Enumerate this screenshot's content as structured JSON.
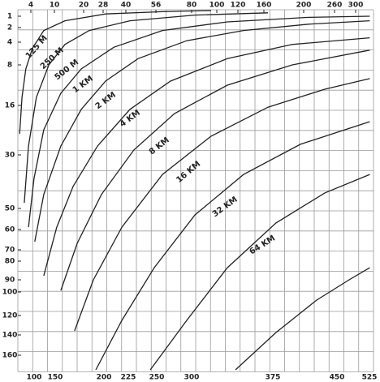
{
  "chart_data": {
    "type": "line",
    "xlim": [
      0,
      330
    ],
    "xticks": [
      4,
      10,
      20,
      28,
      40,
      56,
      80,
      100,
      120,
      160,
      200,
      260,
      300
    ],
    "x2ticks": [
      100,
      150,
      200,
      225,
      250,
      300,
      375,
      450,
      525
    ],
    "ylim": [
      0,
      175
    ],
    "yticks": [
      1,
      2,
      4,
      8,
      16,
      30,
      50,
      60,
      70,
      80,
      90,
      100,
      120,
      140,
      160
    ],
    "color": "#222222",
    "series": [
      {
        "name": "125 M",
        "x": [
          1.1,
          1.7,
          2.7,
          4.4,
          7.3,
          13.6,
          29.3,
          60.4,
          95.5
        ],
        "values": [
          24,
          14.4,
          8.8,
          5.1,
          2.4,
          1.4,
          0.8,
          0.6,
          0.5
        ]
      },
      {
        "name": "250 M",
        "x": [
          2.3,
          3.4,
          5.4,
          8.6,
          13.6,
          22.3,
          42.2,
          82.6,
          164.1
        ],
        "values": [
          47.9,
          27.5,
          14.4,
          8,
          4.4,
          2.4,
          1.4,
          0.9,
          0.7
        ]
      },
      {
        "name": "500 M",
        "x": [
          3.4,
          4.8,
          7.3,
          12.2,
          19.2,
          33.6,
          60.4,
          110,
          209.5,
          326.1
        ],
        "values": [
          58.9,
          38.8,
          22.9,
          13.6,
          8.8,
          4.9,
          2.4,
          1.5,
          1.1,
          1
        ]
      },
      {
        "name": "1 KM",
        "x": [
          5,
          7.3,
          12.2,
          19.2,
          29.3,
          46.5,
          76.7,
          128.8,
          209.5,
          326.1
        ],
        "values": [
          66,
          44.8,
          27.5,
          17.1,
          11.2,
          6.9,
          3.8,
          2.4,
          1.7,
          1.4
        ]
      },
      {
        "name": "2 KM",
        "x": [
          7.3,
          10.8,
          16.4,
          25.7,
          42.2,
          65.8,
          110,
          188.6,
          326.1
        ],
        "values": [
          87.8,
          58.9,
          41.8,
          27.5,
          17.1,
          11.2,
          6.9,
          4.4,
          3.4
        ]
      },
      {
        "name": "4 KM",
        "x": [
          12.2,
          17.8,
          27.3,
          44.3,
          68.5,
          110,
          188.6,
          326.1
        ],
        "values": [
          98.7,
          66.8,
          44.8,
          28.6,
          18.3,
          12,
          8,
          5.4
        ]
      },
      {
        "name": "8 KM",
        "x": [
          16.9,
          24,
          37.9,
          60.4,
          95.5,
          164.1,
          241.1,
          326.1
        ],
        "values": [
          135.8,
          90,
          58.9,
          37.3,
          24.7,
          16.5,
          12.8,
          10.7
        ]
      },
      {
        "name": "16 KM",
        "x": [
          25,
          37.9,
          55.1,
          82.6,
          128.8,
          196.7,
          326.1
        ],
        "values": [
          175,
          125,
          83.5,
          53.1,
          37.3,
          27,
          20.6
        ]
      },
      {
        "name": "32 KM",
        "x": [
          53,
          76.7,
          110,
          172.2,
          241.1,
          326.1
        ],
        "values": [
          175,
          125,
          83.5,
          56.9,
          44.2,
          37.3
        ]
      },
      {
        "name": "64 KM",
        "x": [
          117.7,
          172.2,
          225.3,
          287.7,
          326.1
        ],
        "values": [
          175,
          137.5,
          106.9,
          90,
          83.5
        ]
      }
    ]
  }
}
